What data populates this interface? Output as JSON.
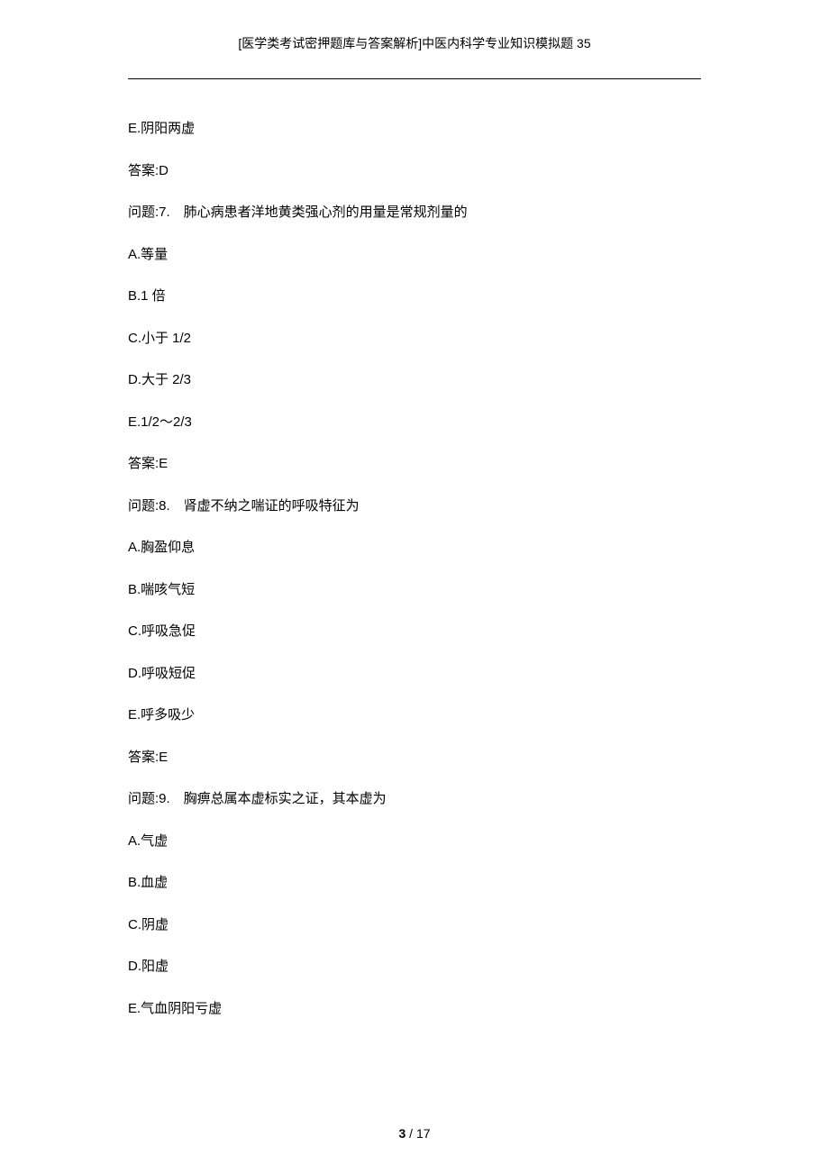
{
  "header": "[医学类考试密押题库与答案解析]中医内科学专业知识模拟题 35",
  "lines": [
    "E.阴阳两虚",
    "答案:D",
    "问题:7.　肺心病患者洋地黄类强心剂的用量是常规剂量的",
    "A.等量",
    "B.1 倍",
    "C.小于 1/2",
    "D.大于 2/3",
    "E.1/2～2/3",
    "答案:E",
    "问题:8.　肾虚不纳之喘证的呼吸特征为",
    "A.胸盈仰息",
    "B.喘咳气短",
    "C.呼吸急促",
    "D.呼吸短促",
    "E.呼多吸少",
    "答案:E",
    "问题:9.　胸痹总属本虚标实之证，其本虚为",
    "A.气虚",
    "B.血虚",
    "C.阴虚",
    "D.阳虚",
    "E.气血阴阳亏虚"
  ],
  "footer": {
    "current": "3",
    "sep": " / ",
    "total": "17"
  }
}
